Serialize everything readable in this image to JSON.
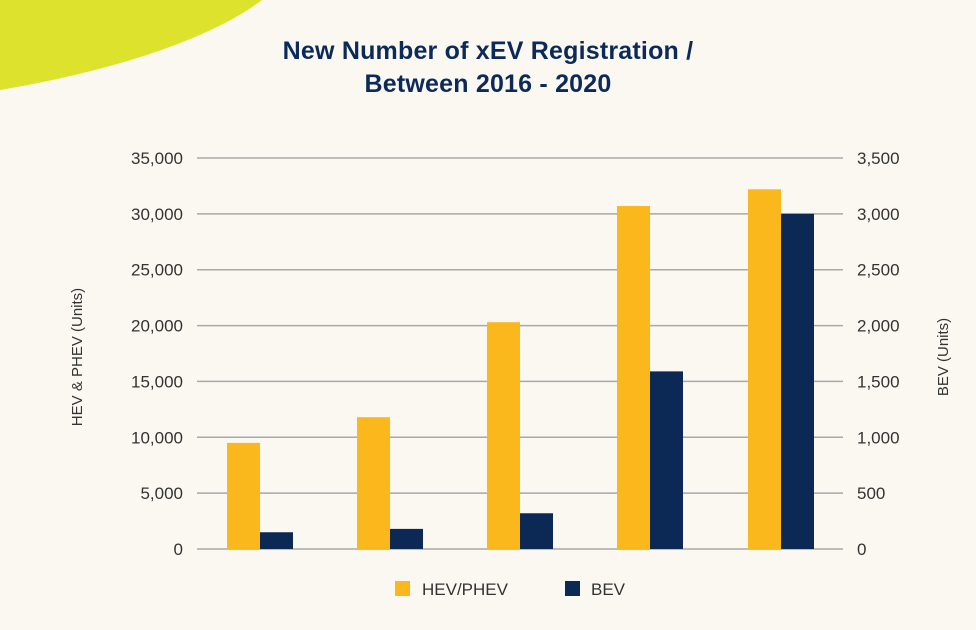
{
  "colors": {
    "background": "#fbf8f1",
    "decor_accent": "#dde32c",
    "title": "#0b2a5a",
    "hev_phev": "#fbb81d",
    "bev": "#0c2855",
    "grid": "#a9a9a9"
  },
  "chart_data": {
    "type": "bar",
    "title_line1": "New Number of xEV Registration /",
    "title_line2": "Between 2016 - 2020",
    "categories": [
      "",
      "",
      "",
      "",
      ""
    ],
    "y_left": {
      "label": "HEV & PHEV (Units)",
      "ylim": [
        0,
        35000
      ],
      "ticks": [
        "0",
        "5,000",
        "10,000",
        "15,000",
        "20,000",
        "25,000",
        "30,000",
        "35,000"
      ]
    },
    "y_right": {
      "label": "BEV (Units)",
      "ylim": [
        0,
        3500
      ],
      "ticks": [
        "0",
        "500",
        "1,000",
        "1,500",
        "2,000",
        "2,500",
        "3,000",
        "3,500"
      ]
    },
    "series": [
      {
        "name": "HEV/PHEV",
        "axis": "left",
        "values": [
          9500,
          11800,
          20300,
          30700,
          32200
        ]
      },
      {
        "name": "BEV",
        "axis": "right",
        "values": [
          150,
          180,
          320,
          1590,
          3000
        ]
      }
    ],
    "grid": true,
    "legend_position": "bottom-center"
  }
}
